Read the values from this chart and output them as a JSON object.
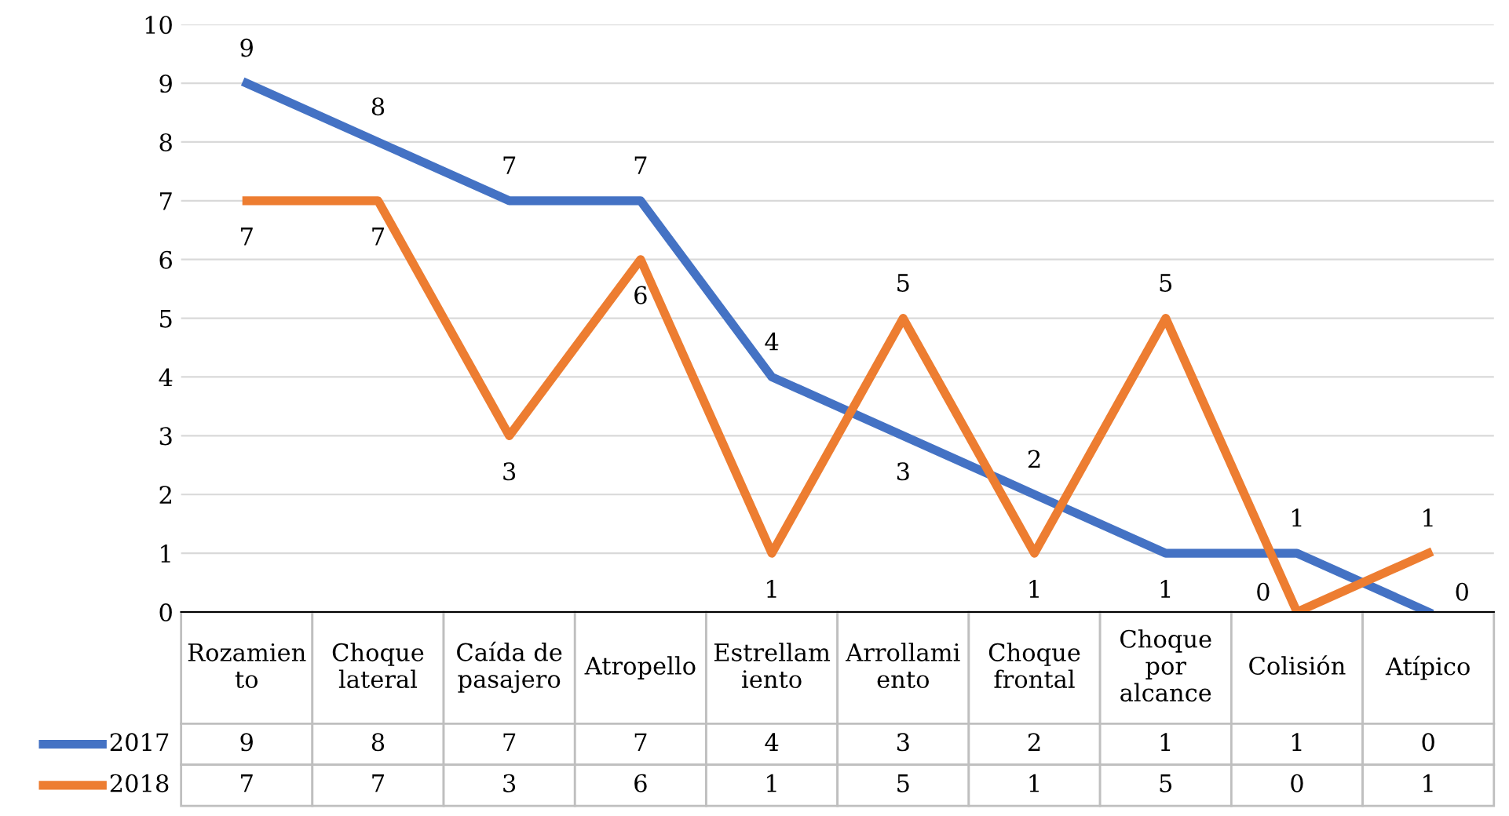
{
  "chart_data": {
    "type": "line",
    "categories": [
      "Rozamien\nto",
      "Choque\nlateral",
      "Caída de\npasajero",
      "Atropello",
      "Estrellam\niento",
      "Arrollami\nento",
      "Choque\nfrontal",
      "Choque\npor\nalcance",
      "Colisión",
      "Atípico"
    ],
    "series": [
      {
        "name": "2017",
        "color": "#4472c4",
        "values": [
          9,
          8,
          7,
          7,
          4,
          3,
          2,
          1,
          1,
          0
        ]
      },
      {
        "name": "2018",
        "color": "#ed7d31",
        "values": [
          7,
          7,
          3,
          6,
          1,
          5,
          1,
          5,
          0,
          1
        ]
      }
    ],
    "annotations": [
      {
        "text": "9",
        "x": "Rozamien\nto",
        "y": 9
      },
      {
        "text": "8",
        "x": "Choque\nlateral",
        "y": 8
      },
      {
        "text": "7",
        "x": "Caída de\npasajero",
        "y": 7
      },
      {
        "text": "7",
        "x": "Atropello",
        "y": 7
      },
      {
        "text": "4",
        "x": "Estrellam\niento",
        "y": 4
      },
      {
        "text": "3",
        "x": "Arrollami\nento",
        "y": 3
      },
      {
        "text": "2",
        "x": "Choque\nfrontal",
        "y": 2
      },
      {
        "text": "1",
        "x": "Choque\npor\nalcance",
        "y": 1
      },
      {
        "text": "1",
        "x": "Colisión",
        "y": 1
      },
      {
        "text": "0",
        "x": "Atípico",
        "y": 0
      },
      {
        "text": "7",
        "x": "Rozamien\nto",
        "y": 7
      },
      {
        "text": "7",
        "x": "Choque\nlateral",
        "y": 7
      },
      {
        "text": "3",
        "x": "Caída de\npasajero",
        "y": 3
      },
      {
        "text": "6",
        "x": "Atropello",
        "y": 6
      },
      {
        "text": "1",
        "x": "Estrellam\niento",
        "y": 1
      },
      {
        "text": "5",
        "x": "Arrollami\nento",
        "y": 5
      },
      {
        "text": "1",
        "x": "Choque\nfrontal",
        "y": 1
      },
      {
        "text": "5",
        "x": "Choque\npor\nalcance",
        "y": 5
      },
      {
        "text": "0",
        "x": "Colisión",
        "y": 0
      },
      {
        "text": "1",
        "x": "Atípico",
        "y": 1
      }
    ],
    "ylim": [
      0,
      10
    ],
    "yticks": [
      0,
      1,
      2,
      3,
      4,
      5,
      6,
      7,
      8,
      9,
      10
    ],
    "grid": "y",
    "data_labels": true,
    "legend": "bottom",
    "marker": "none",
    "line_style": "solid"
  }
}
